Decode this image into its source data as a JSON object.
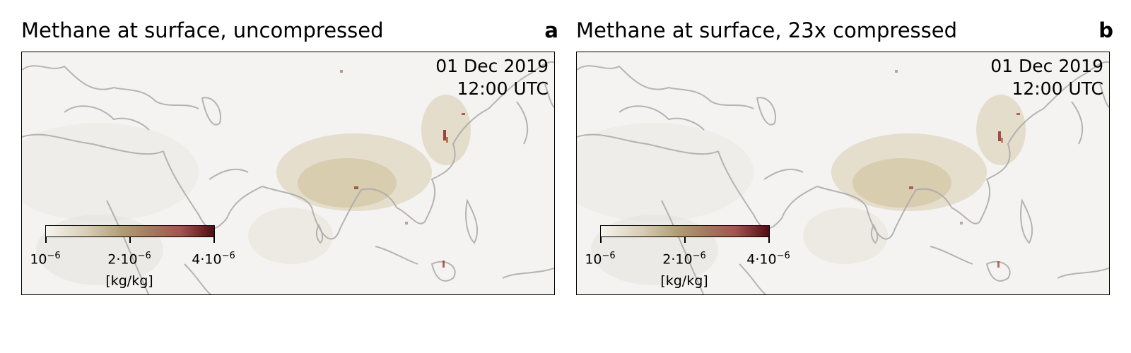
{
  "panels": [
    {
      "title": "Methane at surface, uncompressed",
      "letter": "a",
      "date": "01 Dec 2019",
      "time": "12:00 UTC",
      "colorbar": {
        "ticks": [
          "10",
          "2·10",
          "4·10"
        ],
        "exponent": "−6",
        "unit": "[kg/kg]"
      }
    },
    {
      "title": "Methane at surface, 23x compressed",
      "letter": "b",
      "date": "01 Dec 2019",
      "time": "12:00 UTC",
      "colorbar": {
        "ticks": [
          "10",
          "2·10",
          "4·10"
        ],
        "exponent": "−6",
        "unit": "[kg/kg]"
      }
    }
  ],
  "colors": {
    "coastline": "#a9a9a9",
    "background": "#f3f2f0",
    "haze": "#d5c8a8",
    "hotspot": "#8a2a1f"
  }
}
